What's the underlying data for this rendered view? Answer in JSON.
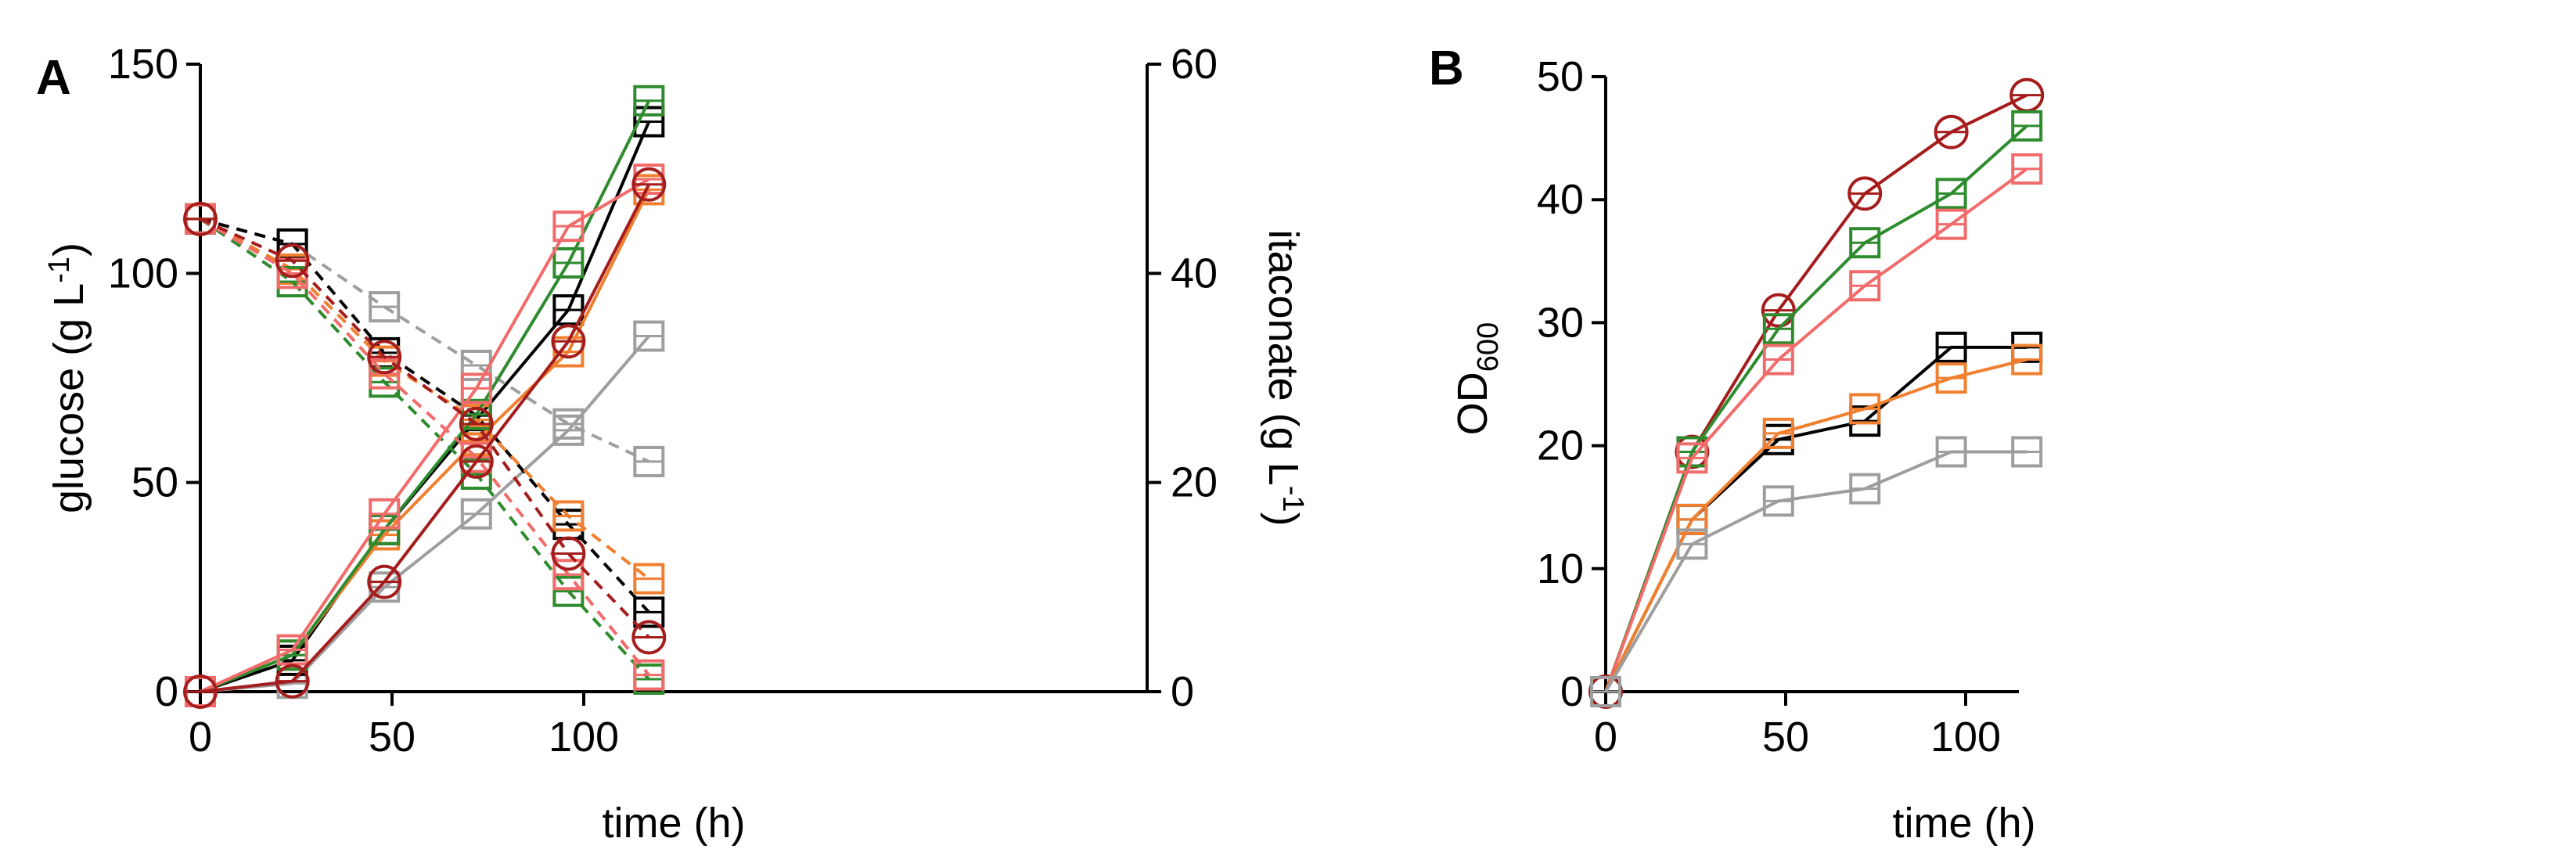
{
  "chart_data": [
    {
      "panel": "A",
      "type": "line",
      "xlabel": "time (h)",
      "ylabel_left": "glucose (g L-1)",
      "ylabel_right": "itaconate (g L-1)",
      "xlim": [
        0,
        120
      ],
      "ylim_left": [
        0,
        150
      ],
      "ylim_right": [
        0,
        60
      ],
      "xticks": [
        "0",
        "50",
        "100"
      ],
      "yticks_left": [
        "0",
        "50",
        "100",
        "150"
      ],
      "yticks_right": [
        "0",
        "20",
        "40",
        "60"
      ],
      "x": [
        0,
        24,
        48,
        72,
        96,
        117
      ],
      "series": [
        {
          "color": "#9e9e9e",
          "marker": "square",
          "glucose": [
            113,
            107,
            92,
            78,
            64,
            55
          ],
          "itaconate": [
            0,
            0.8,
            10,
            17,
            25,
            34
          ]
        },
        {
          "color": "#000000",
          "marker": "square",
          "glucose": [
            113,
            107,
            81,
            66,
            40,
            19
          ],
          "itaconate": [
            0,
            3,
            15.5,
            26,
            36.5,
            54.5
          ]
        },
        {
          "color": "#f08030",
          "marker": "square",
          "glucose": [
            113,
            101,
            79,
            65,
            42,
            27
          ],
          "itaconate": [
            0,
            3.5,
            15,
            24,
            32.5,
            48
          ]
        },
        {
          "color": "#2e8b2e",
          "marker": "square",
          "glucose": [
            113,
            98,
            74,
            52,
            24,
            3
          ],
          "itaconate": [
            0,
            3.5,
            15.5,
            26.5,
            41,
            56.5
          ]
        },
        {
          "color": "#f26b6b",
          "marker": "square",
          "glucose": [
            113,
            100,
            76,
            56,
            28,
            4
          ],
          "itaconate": [
            0,
            4,
            17,
            29,
            44.5,
            49
          ]
        },
        {
          "color": "#a51c1c",
          "marker": "circle",
          "glucose": [
            113,
            103,
            80,
            64,
            33,
            13
          ],
          "itaconate": [
            0,
            1,
            10.5,
            22,
            33.5,
            48.5
          ]
        }
      ]
    },
    {
      "panel": "B",
      "type": "line",
      "xlabel": "time (h)",
      "ylabel": "OD600",
      "xlim": [
        0,
        120
      ],
      "ylim": [
        0,
        50
      ],
      "xticks": [
        "0",
        "50",
        "100"
      ],
      "yticks": [
        "0",
        "10",
        "20",
        "30",
        "40",
        "50"
      ],
      "x": [
        0,
        24,
        48,
        72,
        96,
        117
      ],
      "series": [
        {
          "color": "#a51c1c",
          "marker": "circle",
          "values": [
            0,
            19.5,
            31,
            40.5,
            45.5,
            48.5
          ]
        },
        {
          "color": "#2e8b2e",
          "marker": "square",
          "values": [
            0,
            19.5,
            29.5,
            36.5,
            40.5,
            46
          ]
        },
        {
          "color": "#f26b6b",
          "marker": "square",
          "values": [
            0,
            19,
            27,
            33,
            38,
            42.5
          ]
        },
        {
          "color": "#000000",
          "marker": "square",
          "values": [
            0,
            14,
            20.5,
            22,
            28,
            28
          ]
        },
        {
          "color": "#f08030",
          "marker": "square",
          "values": [
            0,
            14,
            21,
            23,
            25.5,
            27
          ]
        },
        {
          "color": "#9e9e9e",
          "marker": "square",
          "values": [
            0,
            12,
            15.5,
            16.5,
            19.5,
            19.5
          ]
        }
      ]
    }
  ]
}
